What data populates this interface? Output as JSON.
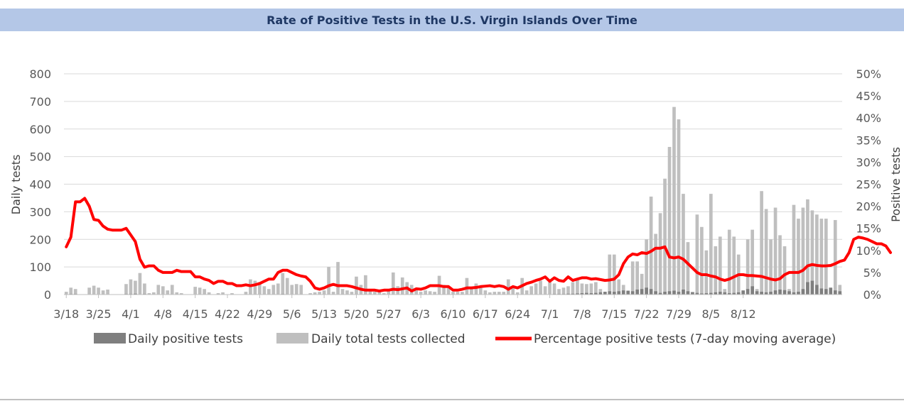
{
  "chart_data": {
    "type": "bar",
    "title": "Rate of Positive Tests in the U.S. Virgin Islands Over Time",
    "ylabel": "Daily tests",
    "y2label": "Positive tests",
    "ylim": [
      0,
      800
    ],
    "y2lim": [
      0,
      50
    ],
    "yticks": [
      "0",
      "100",
      "200",
      "300",
      "400",
      "500",
      "600",
      "700",
      "800"
    ],
    "y2ticks": [
      "0%",
      "5%",
      "10%",
      "15%",
      "20%",
      "25%",
      "30%",
      "35%",
      "40%",
      "45%",
      "50%"
    ],
    "xtick_labels": [
      "3/18",
      "3/25",
      "4/1",
      "4/8",
      "4/15",
      "4/22",
      "4/29",
      "5/6",
      "5/13",
      "5/20",
      "5/27",
      "6/3",
      "6/10",
      "6/17",
      "6/24",
      "7/1",
      "7/8",
      "7/15",
      "7/22",
      "7/29",
      "8/5",
      "8/12"
    ],
    "grid": true,
    "legend_position": "bottom",
    "series": [
      {
        "name": "Daily positive tests",
        "type": "bar",
        "color": "#7f7f7f",
        "values": [
          1,
          2,
          2,
          0,
          0,
          1,
          1,
          1,
          1,
          1,
          0,
          0,
          0,
          2,
          2,
          3,
          1,
          2,
          1,
          0,
          0,
          1,
          1,
          1,
          1,
          0,
          0,
          0,
          0,
          0,
          0,
          1,
          1,
          1,
          0,
          0,
          0,
          0,
          0,
          0,
          1,
          0,
          0,
          0,
          0,
          0,
          0,
          2,
          1,
          0,
          0,
          0,
          0,
          0,
          0,
          0,
          0,
          0,
          0,
          0,
          0,
          0,
          0,
          0,
          0,
          0,
          0,
          0,
          0,
          0,
          0,
          0,
          0,
          0,
          0,
          0,
          0,
          0,
          0,
          0,
          0,
          0,
          0,
          0,
          0,
          0,
          0,
          0,
          0,
          0,
          0,
          0,
          0,
          0,
          0,
          0,
          0,
          0,
          1,
          1,
          1,
          1,
          1,
          1,
          1,
          1,
          2,
          2,
          2,
          3,
          3,
          4,
          5,
          6,
          5,
          6,
          8,
          10,
          12,
          10,
          12,
          15,
          14,
          12,
          18,
          20,
          25,
          20,
          12,
          6,
          10,
          12,
          14,
          10,
          18,
          12,
          8,
          6,
          4,
          5,
          6,
          8,
          10,
          8,
          5,
          6,
          8,
          15,
          20,
          30,
          12,
          10,
          8,
          10,
          15,
          18,
          16,
          12,
          8,
          10,
          20,
          45,
          50,
          35,
          22,
          20,
          25,
          15,
          12,
          10,
          30,
          12
        ]
      },
      {
        "name": "Daily total tests collected",
        "type": "bar",
        "color": "#bfbfbf",
        "values": [
          10,
          25,
          20,
          0,
          0,
          25,
          32,
          25,
          15,
          18,
          0,
          0,
          0,
          38,
          55,
          50,
          78,
          40,
          5,
          8,
          35,
          30,
          15,
          35,
          8,
          5,
          0,
          0,
          28,
          25,
          20,
          8,
          0,
          5,
          8,
          0,
          5,
          0,
          0,
          10,
          55,
          50,
          45,
          30,
          20,
          35,
          40,
          78,
          60,
          35,
          38,
          35,
          0,
          5,
          8,
          10,
          15,
          100,
          10,
          118,
          20,
          15,
          10,
          65,
          35,
          70,
          15,
          10,
          10,
          5,
          15,
          80,
          30,
          62,
          45,
          35,
          20,
          10,
          15,
          12,
          10,
          68,
          35,
          30,
          10,
          10,
          10,
          60,
          25,
          40,
          30,
          15,
          8,
          10,
          10,
          10,
          55,
          30,
          8,
          60,
          15,
          30,
          40,
          50,
          30,
          45,
          40,
          20,
          25,
          30,
          45,
          55,
          40,
          38,
          40,
          45,
          20,
          10,
          145,
          145,
          55,
          35,
          10,
          120,
          120,
          75,
          200,
          355,
          220,
          295,
          420,
          535,
          680,
          635,
          365,
          190,
          10,
          290,
          245,
          160,
          365,
          175,
          210,
          20,
          235,
          210,
          145,
          10,
          200,
          235,
          20,
          375,
          310,
          200,
          315,
          215,
          175,
          20,
          325,
          275,
          315,
          345,
          305,
          290,
          275,
          275,
          10,
          270,
          35
        ]
      },
      {
        "name": "Percentage positive tests (7-day moving average)",
        "type": "line",
        "color": "#ff0000",
        "values": [
          10.8,
          13,
          21,
          21,
          21.8,
          20,
          17,
          16.8,
          15.5,
          14.8,
          14.6,
          14.6,
          14.6,
          15,
          13.5,
          12,
          8,
          6.2,
          6.5,
          6.5,
          5.5,
          5,
          5,
          5,
          5.5,
          5.2,
          5.2,
          5.2,
          4,
          4,
          3.5,
          3.2,
          2.5,
          3,
          3,
          2.5,
          2.5,
          2,
          2,
          2.2,
          2,
          2.2,
          2.5,
          3,
          3.5,
          3.5,
          5,
          5.5,
          5.5,
          5,
          4.5,
          4.2,
          4,
          3,
          1.5,
          1.2,
          1.5,
          2,
          2.3,
          2,
          2,
          2,
          1.8,
          1.5,
          1.2,
          1,
          1,
          1,
          0.8,
          1,
          1,
          1.2,
          1.1,
          1.3,
          1.5,
          0.8,
          1.3,
          1.2,
          1.5,
          2,
          2,
          2,
          1.8,
          1.8,
          1,
          1,
          1.2,
          1.5,
          1.5,
          1.6,
          1.8,
          1.9,
          2,
          1.8,
          2,
          1.8,
          1.2,
          1.8,
          1.5,
          2,
          2.5,
          2.8,
          3.2,
          3.5,
          4,
          3,
          3.8,
          3.2,
          3,
          4,
          3.2,
          3.5,
          3.8,
          3.8,
          3.5,
          3.6,
          3.4,
          3.2,
          3.3,
          3.5,
          4.5,
          7,
          8.5,
          9.2,
          9,
          9.5,
          9.3,
          9.8,
          10.5,
          10.5,
          10.8,
          8.5,
          8.3,
          8.5,
          8,
          7,
          6,
          5,
          4.5,
          4.5,
          4.2,
          4,
          3.5,
          3.2,
          3.5,
          4,
          4.5,
          4.5,
          4.3,
          4.3,
          4.2,
          4.1,
          3.8,
          3.5,
          3.3,
          3.6,
          4.5,
          5,
          5,
          5,
          5.5,
          6.5,
          6.8,
          6.6,
          6.5,
          6.5,
          6.6,
          7,
          7.5,
          7.8,
          9.5,
          12.5,
          13,
          12.8,
          12.5,
          12,
          11.5,
          11.5,
          11,
          9.5
        ]
      }
    ]
  }
}
